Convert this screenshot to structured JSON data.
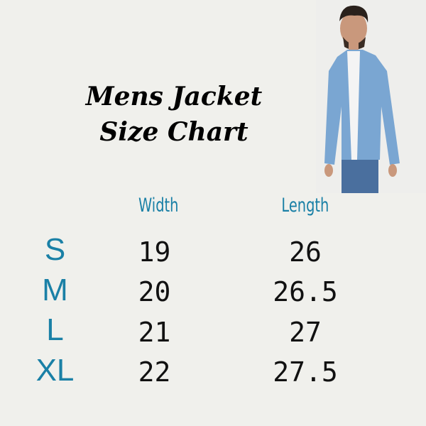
{
  "title": {
    "line1": "Mens Jacket",
    "line2": "Size Chart"
  },
  "headers": {
    "width": "Width",
    "length": "Length"
  },
  "rows": [
    {
      "size": "S",
      "width": "19",
      "length": "26"
    },
    {
      "size": "M",
      "width": "20",
      "length": "26.5"
    },
    {
      "size": "L",
      "width": "21",
      "length": "27"
    },
    {
      "size": "XL",
      "width": "22",
      "length": "27.5"
    }
  ],
  "colors": {
    "accent": "#1a80a6",
    "background": "#f0f0ec",
    "denim": "#7aa6d2"
  }
}
